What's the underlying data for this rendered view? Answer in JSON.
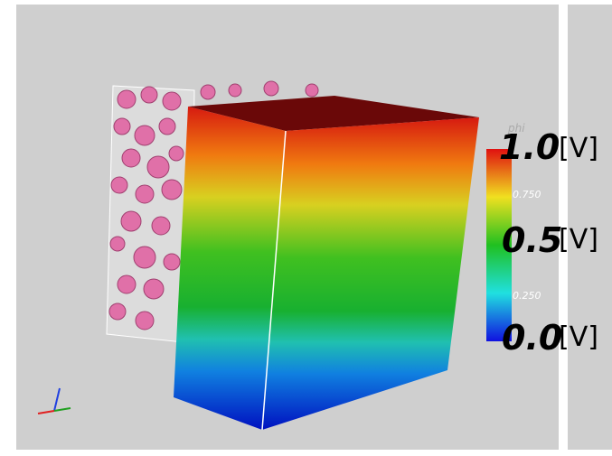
{
  "colorbar": {
    "title": "phi",
    "labels": [
      {
        "text": "1.0",
        "unit": "[V]"
      },
      {
        "text": "0.750"
      },
      {
        "text": "0.5",
        "unit": "[V]"
      },
      {
        "text": "0.250"
      },
      {
        "text": "0.0",
        "unit": "[V]"
      }
    ]
  }
}
